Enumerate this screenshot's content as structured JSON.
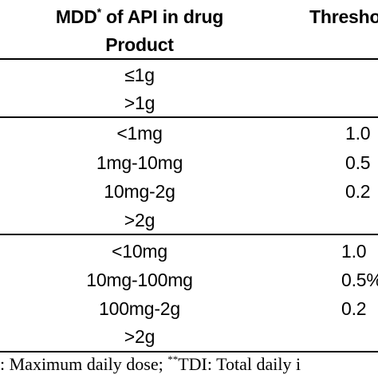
{
  "header": {
    "col1_line1_pre": "MDD",
    "col1_line1_sup": "*",
    "col1_line1_post": " of API in drug",
    "col1_line2": "Product",
    "col2": "Thresho"
  },
  "groups": [
    {
      "rows": [
        {
          "mdd": "≤1g",
          "threshold": ""
        },
        {
          "mdd": ">1g",
          "threshold": ""
        }
      ]
    },
    {
      "rows": [
        {
          "mdd": "<1mg",
          "threshold": "1.0"
        },
        {
          "mdd": "1mg-10mg",
          "threshold": "0.5"
        },
        {
          "mdd": "10mg-2g",
          "threshold": "0.2"
        },
        {
          "mdd": ">2g",
          "threshold": ""
        }
      ]
    },
    {
      "rows": [
        {
          "mdd": "<10mg",
          "threshold": "1.0"
        },
        {
          "mdd": "10mg-100mg",
          "threshold": "0.5%"
        },
        {
          "mdd": "100mg-2g",
          "threshold": "0.2"
        },
        {
          "mdd": ">2g",
          "threshold": ""
        }
      ]
    }
  ],
  "footnote": {
    "part1": ": Maximum daily dose; ",
    "sup": "**",
    "part2": "TDI: Total daily i"
  }
}
